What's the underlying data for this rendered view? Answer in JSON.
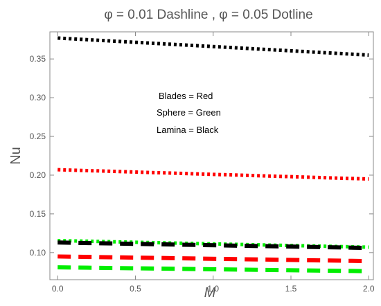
{
  "chart_data": {
    "type": "line",
    "title": "φ = 0.01  Dashline , φ = 0.05  Dotline",
    "xlabel": "M",
    "ylabel": "Nu",
    "xlim": [
      -0.05,
      2.03
    ],
    "ylim": [
      0.065,
      0.385
    ],
    "x_ticks": [
      "0.0",
      "0.5",
      "1.0",
      "1.5",
      "2.0"
    ],
    "x_tick_values": [
      0,
      0.5,
      1.0,
      1.5,
      2.0
    ],
    "y_ticks": [
      "0.10",
      "0.15",
      "0.20",
      "0.25",
      "0.30",
      "0.35"
    ],
    "y_tick_values": [
      0.1,
      0.15,
      0.2,
      0.25,
      0.3,
      0.35
    ],
    "legend": [
      "Blades  = Red",
      "Sphere  = Green",
      "Lamina  = Black"
    ],
    "legend_placement": "center",
    "grid": false,
    "series": [
      {
        "name": "Blades φ = 0.05",
        "color": "#ff0000",
        "style": "dotted",
        "x": [
          0,
          2
        ],
        "y": [
          0.207,
          0.195
        ]
      },
      {
        "name": "Sphere φ = 0.05",
        "color": "#00ee00",
        "style": "dotted",
        "x": [
          0,
          2
        ],
        "y": [
          0.1155,
          0.107
        ]
      },
      {
        "name": "Lamina φ = 0.05",
        "color": "#000000",
        "style": "dotted",
        "x": [
          0,
          2
        ],
        "y": [
          0.377,
          0.355
        ]
      },
      {
        "name": "Blades φ = 0.01",
        "color": "#ff0000",
        "style": "dashed",
        "x": [
          0,
          2
        ],
        "y": [
          0.095,
          0.089
        ]
      },
      {
        "name": "Sphere φ = 0.01",
        "color": "#00ee00",
        "style": "dashed",
        "x": [
          0,
          2
        ],
        "y": [
          0.081,
          0.076
        ]
      },
      {
        "name": "Lamina φ = 0.01",
        "color": "#000000",
        "style": "dashed",
        "x": [
          0,
          2
        ],
        "y": [
          0.113,
          0.106
        ]
      }
    ]
  }
}
